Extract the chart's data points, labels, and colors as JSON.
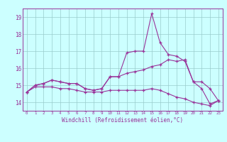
{
  "hours": [
    0,
    1,
    2,
    3,
    4,
    5,
    6,
    7,
    8,
    9,
    10,
    11,
    12,
    13,
    14,
    15,
    16,
    17,
    18,
    19,
    20,
    21,
    22,
    23
  ],
  "line1": [
    14.6,
    15.0,
    15.1,
    15.3,
    15.2,
    15.1,
    15.1,
    14.8,
    14.7,
    14.8,
    15.5,
    15.5,
    16.9,
    17.0,
    17.0,
    19.2,
    17.5,
    16.8,
    16.7,
    16.4,
    15.2,
    14.8,
    13.9,
    14.1
  ],
  "line2": [
    14.6,
    15.0,
    15.1,
    15.3,
    15.2,
    15.1,
    15.1,
    14.8,
    14.7,
    14.8,
    15.5,
    15.5,
    15.7,
    15.8,
    15.9,
    16.1,
    16.2,
    16.5,
    16.4,
    16.5,
    15.2,
    15.2,
    14.8,
    14.1
  ],
  "line3": [
    14.6,
    14.9,
    14.9,
    14.9,
    14.8,
    14.8,
    14.7,
    14.6,
    14.6,
    14.6,
    14.7,
    14.7,
    14.7,
    14.7,
    14.7,
    14.8,
    14.7,
    14.5,
    14.3,
    14.2,
    14.0,
    13.9,
    13.8,
    14.1
  ],
  "color": "#993399",
  "bg_color": "#ccffff",
  "grid_color": "#99cccc",
  "ylim": [
    13.5,
    19.5
  ],
  "yticks": [
    14,
    15,
    16,
    17,
    18,
    19
  ],
  "ytop_label": "19",
  "xlabel": "Windchill (Refroidissement éolien,°C)"
}
